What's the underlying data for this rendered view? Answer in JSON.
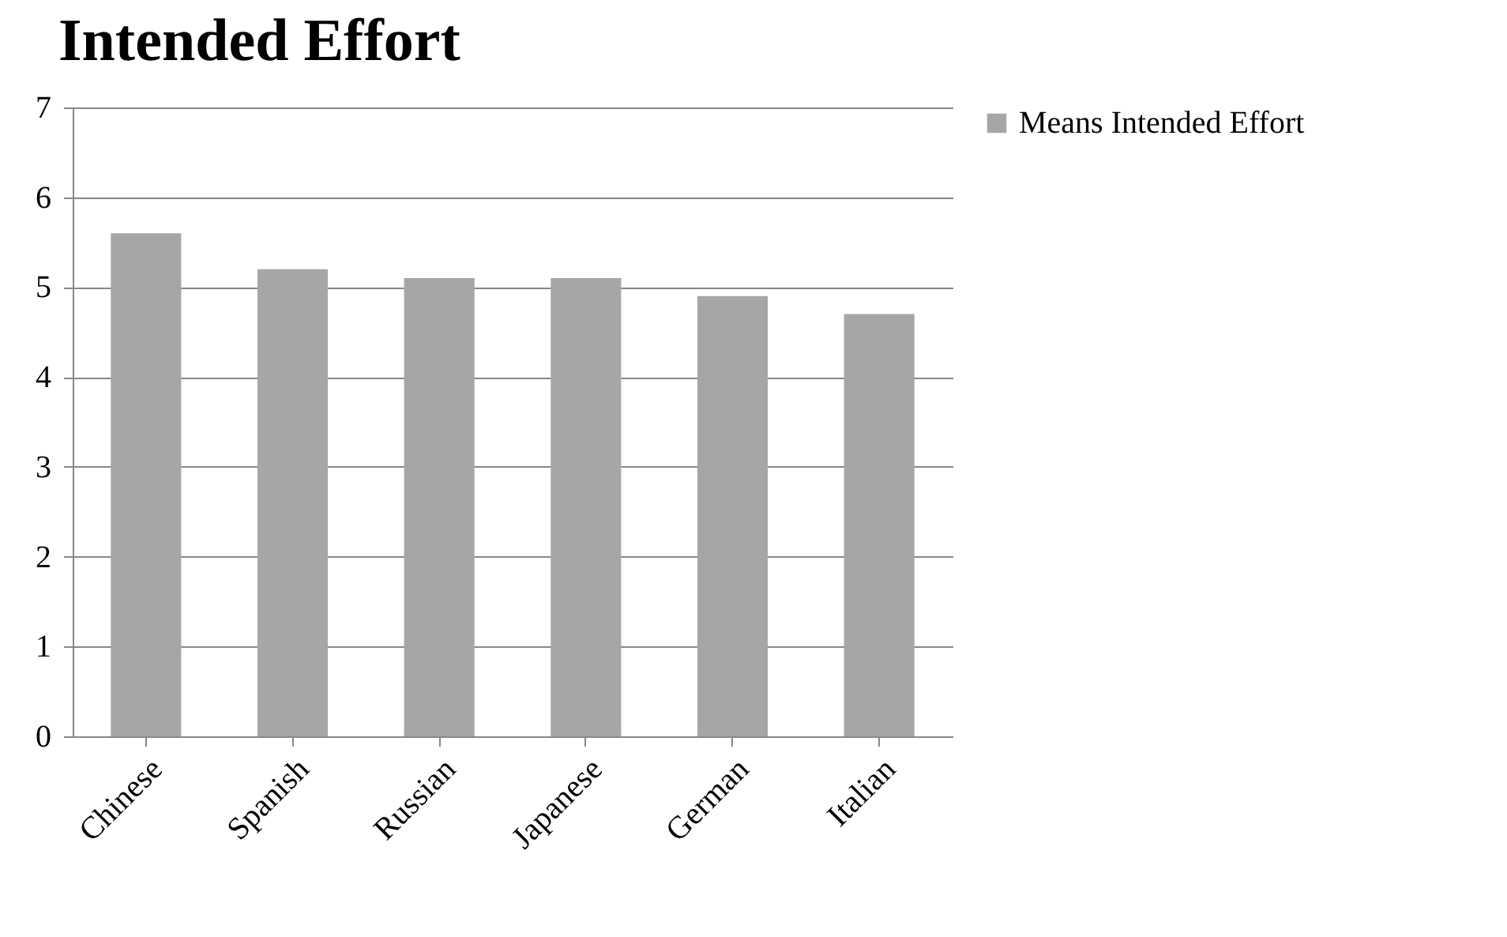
{
  "chart_data": {
    "type": "bar",
    "title": "Intended Effort",
    "categories": [
      "Chinese",
      "Spanish",
      "Russian",
      "Japanese",
      "German",
      "Italian"
    ],
    "series": [
      {
        "name": "Means Intended Effort",
        "color": "#a6a6a6",
        "values": [
          5.6,
          5.2,
          5.1,
          5.1,
          4.9,
          4.7
        ]
      }
    ],
    "ylim": [
      0,
      7
    ],
    "yticks": [
      0,
      1,
      2,
      3,
      4,
      5,
      6,
      7
    ],
    "grid": "y",
    "legend": "right"
  }
}
